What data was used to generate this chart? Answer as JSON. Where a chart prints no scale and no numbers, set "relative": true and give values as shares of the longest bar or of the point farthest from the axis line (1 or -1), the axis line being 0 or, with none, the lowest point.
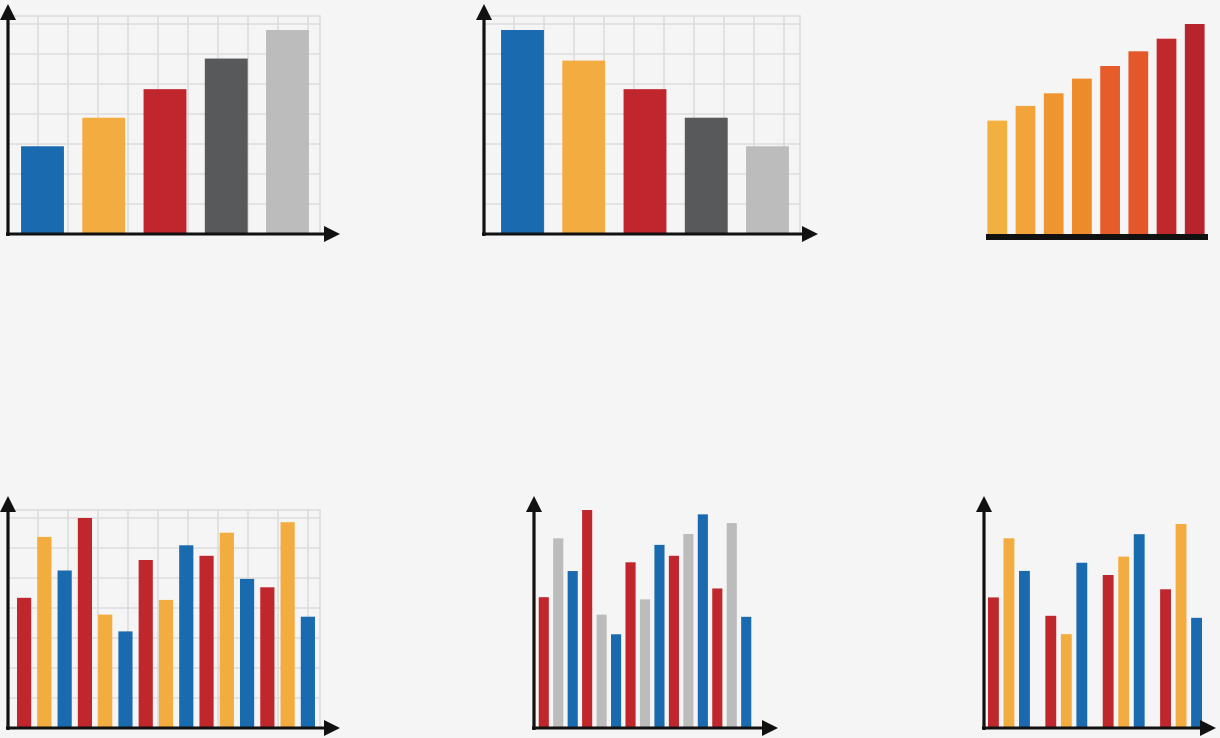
{
  "chart_data": [
    {
      "type": "bar",
      "relative": true,
      "grid": true,
      "tick_labels": false,
      "categories": [
        null,
        null,
        null,
        null,
        null
      ],
      "values": [
        0.43,
        0.57,
        0.71,
        0.86,
        1
      ],
      "colors": [
        "#1a6aaf",
        "#f2ac3f",
        "#c0272d",
        "#58595b",
        "#bcbcbc"
      ]
    },
    {
      "type": "bar",
      "relative": true,
      "grid": true,
      "tick_labels": false,
      "categories": [
        null,
        null,
        null,
        null,
        null
      ],
      "values": [
        1,
        0.85,
        0.71,
        0.57,
        0.43
      ],
      "colors": [
        "#1a6aaf",
        "#f2ac3f",
        "#c0272d",
        "#58595b",
        "#bcbcbc"
      ]
    },
    {
      "type": "bar",
      "relative": true,
      "tick_labels": false,
      "categories": [
        null,
        null,
        null,
        null,
        null,
        null,
        null,
        null
      ],
      "values": [
        0.54,
        0.61,
        0.67,
        0.74,
        0.8,
        0.87,
        0.93,
        1
      ],
      "colors": [
        "#f2b03e",
        "#f2a33a",
        "#ef9530",
        "#ee8a2a",
        "#e65c2a",
        "#e4572a",
        "#c0282c",
        "#b8242c"
      ]
    },
    {
      "type": "bar",
      "relative": true,
      "grid": true,
      "tick_labels": false,
      "categories": [
        null,
        null,
        null,
        null,
        null,
        null,
        null,
        null,
        null,
        null,
        null,
        null,
        null,
        null,
        null
      ],
      "values": [
        0.62,
        0.91,
        0.75,
        1,
        0.54,
        0.46,
        0.8,
        0.61,
        0.87,
        0.82,
        0.93,
        0.71,
        0.67,
        0.98,
        0.53
      ],
      "colors": [
        "#c0272d",
        "#f2ac3f",
        "#1a6aaf",
        "#c0272d",
        "#f2ac3f",
        "#1a6aaf",
        "#c0272d",
        "#f2ac3f",
        "#1a6aaf",
        "#c0272d",
        "#f2ac3f",
        "#1a6aaf",
        "#c0272d",
        "#f2ac3f",
        "#1a6aaf"
      ]
    },
    {
      "type": "bar",
      "relative": true,
      "tick_labels": false,
      "categories": [
        null,
        null,
        null,
        null,
        null,
        null,
        null,
        null,
        null,
        null,
        null,
        null,
        null,
        null,
        null
      ],
      "values": [
        0.6,
        0.87,
        0.72,
        1,
        0.52,
        0.43,
        0.76,
        0.59,
        0.84,
        0.79,
        0.89,
        0.98,
        0.64,
        0.94,
        0.51
      ],
      "colors": [
        "#c0272d",
        "#bcbcbc",
        "#1a6aaf",
        "#c0272d",
        "#bcbcbc",
        "#1a6aaf",
        "#c0272d",
        "#bcbcbc",
        "#1a6aaf",
        "#c0272d",
        "#bcbcbc",
        "#1a6aaf",
        "#c0272d",
        "#bcbcbc",
        "#1a6aaf"
      ]
    },
    {
      "type": "bar",
      "relative": true,
      "tick_labels": false,
      "categories": [
        null,
        null,
        null,
        null
      ],
      "series": [
        {
          "color": "#c0272d",
          "values": [
            0.64,
            0.55,
            0.75,
            0.68
          ]
        },
        {
          "color": "#f2ac3f",
          "values": [
            0.93,
            0.46,
            0.84,
            1
          ]
        },
        {
          "color": "#1a6aaf",
          "values": [
            0.77,
            0.81,
            0.95,
            0.54
          ]
        }
      ]
    }
  ]
}
